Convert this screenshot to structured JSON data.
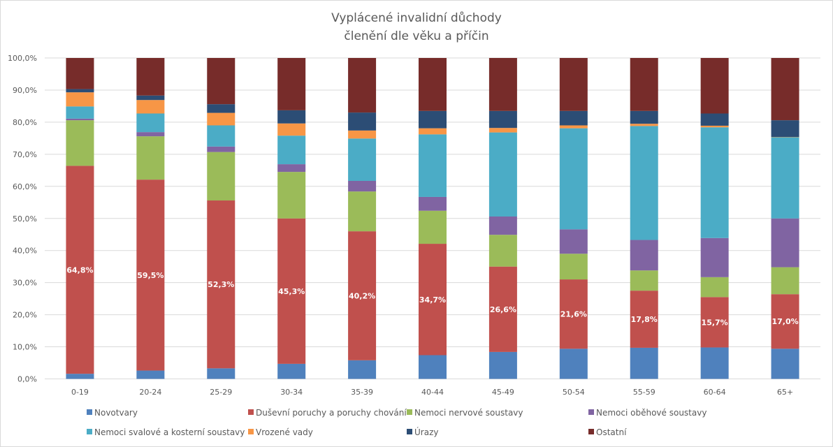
{
  "chart_data": {
    "type": "bar",
    "stacked": true,
    "percent": true,
    "title": "Vyplácené invalidní důchody",
    "subtitle": "členění dle věku a příčin",
    "xlabel": "",
    "ylabel": "",
    "ylim": [
      0,
      100
    ],
    "yticks": [
      "0,0%",
      "10,0%",
      "20,0%",
      "30,0%",
      "40,0%",
      "50,0%",
      "60,0%",
      "70,0%",
      "80,0%",
      "90,0%",
      "100,0%"
    ],
    "grid": true,
    "legend_position": "bottom",
    "categories": [
      "0-19",
      "20-24",
      "25-29",
      "30-34",
      "35-39",
      "40-44",
      "45-49",
      "50-54",
      "55-59",
      "60-64",
      "65+"
    ],
    "series": [
      {
        "name": "Novotvary",
        "color": "#4f81bd",
        "values": [
          1.6,
          2.6,
          3.3,
          4.7,
          5.8,
          7.4,
          8.4,
          9.4,
          9.7,
          9.8,
          9.4
        ]
      },
      {
        "name": "Duševní poruchy a poruchy chování",
        "color": "#c0504d",
        "values": [
          64.8,
          59.5,
          52.3,
          45.3,
          40.2,
          34.7,
          26.6,
          21.6,
          17.8,
          15.7,
          17.0
        ],
        "data_labels": [
          "64,8%",
          "59,5%",
          "52,3%",
          "45,3%",
          "40,2%",
          "34,7%",
          "26,6%",
          "21,6%",
          "17,8%",
          "15,7%",
          "17,0%"
        ]
      },
      {
        "name": "Nemoci nervové soustavy",
        "color": "#9bbb59",
        "values": [
          14.2,
          13.5,
          15.1,
          14.5,
          12.4,
          10.3,
          9.9,
          8.0,
          6.3,
          6.2,
          8.4
        ]
      },
      {
        "name": "Nemoci oběhové soustavy",
        "color": "#8064a2",
        "values": [
          0.5,
          1.3,
          1.7,
          2.4,
          3.3,
          4.3,
          5.7,
          7.6,
          9.5,
          12.2,
          15.2
        ]
      },
      {
        "name": "Nemoci svalové a kosterní soustavy",
        "color": "#4bacc6",
        "values": [
          3.8,
          5.8,
          6.6,
          8.9,
          13.2,
          19.5,
          26.2,
          31.5,
          35.5,
          34.5,
          25.3
        ]
      },
      {
        "name": "Vrozené vady",
        "color": "#f79646",
        "values": [
          4.4,
          4.2,
          3.9,
          3.8,
          2.5,
          1.9,
          1.4,
          0.9,
          0.7,
          0.5,
          0.1
        ]
      },
      {
        "name": "Úrazy",
        "color": "#2c4d75",
        "values": [
          1.0,
          1.4,
          2.7,
          4.1,
          5.6,
          5.4,
          5.3,
          4.5,
          4.0,
          3.8,
          5.2
        ]
      },
      {
        "name": "Ostatní",
        "color": "#772c2a",
        "values": [
          9.7,
          11.7,
          14.4,
          16.3,
          17.0,
          16.5,
          16.5,
          16.5,
          16.5,
          17.3,
          19.4
        ]
      }
    ],
    "legend_order": [
      0,
      1,
      2,
      3,
      4,
      5,
      6,
      7
    ]
  }
}
